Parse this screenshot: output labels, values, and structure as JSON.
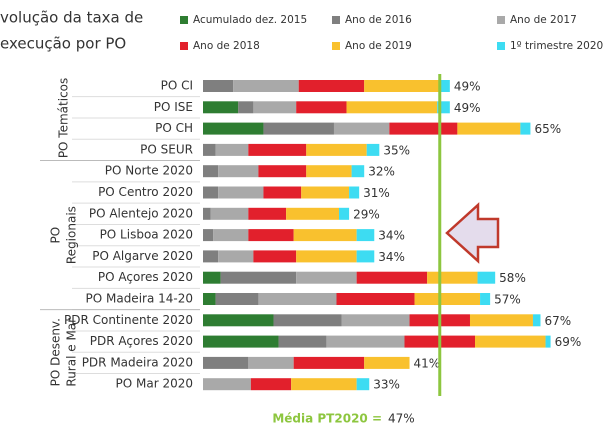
{
  "chart_data": {
    "type": "stacked-bar-horizontal",
    "title_lines": [
      "volução da taxa de",
      "execução por PO"
    ],
    "categories": [
      "PO CI",
      "PO ISE",
      "PO CH",
      "PO SEUR",
      "PO Norte 2020",
      "PO Centro 2020",
      "PO Alentejo 2020",
      "PO Lisboa 2020",
      "PO Algarve 2020",
      "PO Açores 2020",
      "PO Madeira 14-20",
      "PDR Continente 2020",
      "PDR Açores 2020",
      "PDR Madeira 2020",
      "PO Mar 2020"
    ],
    "groups": [
      {
        "label_lines": [
          "PO Temáticos"
        ],
        "rows": [
          0,
          3
        ]
      },
      {
        "label_lines": [
          "PO",
          "Regionais"
        ],
        "rows": [
          4,
          10
        ]
      },
      {
        "label_lines": [
          "PO Desenv.",
          "Rural e Mar"
        ],
        "rows": [
          11,
          14
        ]
      }
    ],
    "series": [
      {
        "name": "Acumulado dez. 2015",
        "color": "#2e7d32",
        "values": [
          0,
          7,
          12,
          0,
          0,
          0,
          0,
          0,
          0,
          3.5,
          2.5,
          14,
          15,
          0,
          0
        ]
      },
      {
        "name": "Ano de 2016",
        "color": "#7f7f7f",
        "values": [
          6,
          3,
          14,
          2.5,
          3,
          3,
          1.5,
          2,
          3,
          15,
          8.5,
          13.5,
          9.5,
          9,
          0
        ]
      },
      {
        "name": "Ano de 2017",
        "color": "#a9a9a9",
        "values": [
          13,
          8.5,
          11,
          6.5,
          8,
          9,
          7.5,
          7,
          7,
          12,
          15.5,
          13.5,
          15.5,
          9,
          9.5
        ]
      },
      {
        "name": "Ano de 2018",
        "color": "#e2202c",
        "values": [
          13,
          10,
          13.5,
          11.5,
          9.5,
          7.5,
          7.5,
          9,
          8.5,
          14,
          15.5,
          12,
          14,
          14,
          8
        ]
      },
      {
        "name": "Ano de 2019",
        "color": "#f9c12e",
        "values": [
          15,
          18,
          12.5,
          12,
          9,
          9.5,
          10.5,
          12.5,
          12,
          10,
          13,
          12.5,
          14,
          9,
          13
        ]
      },
      {
        "name": "1º trimestre 2020",
        "color": "#3ddcf2",
        "values": [
          2,
          2.5,
          2,
          2.5,
          2.5,
          2,
          2,
          3.5,
          3.5,
          3.5,
          2,
          1.5,
          1,
          0,
          2.5
        ]
      }
    ],
    "total_labels": [
      "49%",
      "49%",
      "65%",
      "35%",
      "32%",
      "31%",
      "29%",
      "34%",
      "34%",
      "58%",
      "57%",
      "67%",
      "69%",
      "41%",
      "33%"
    ],
    "xlim": [
      0,
      80
    ],
    "average": {
      "label": "Média PT2020 =",
      "value": 47,
      "value_label": "47%",
      "color": "#8dc63f"
    }
  }
}
